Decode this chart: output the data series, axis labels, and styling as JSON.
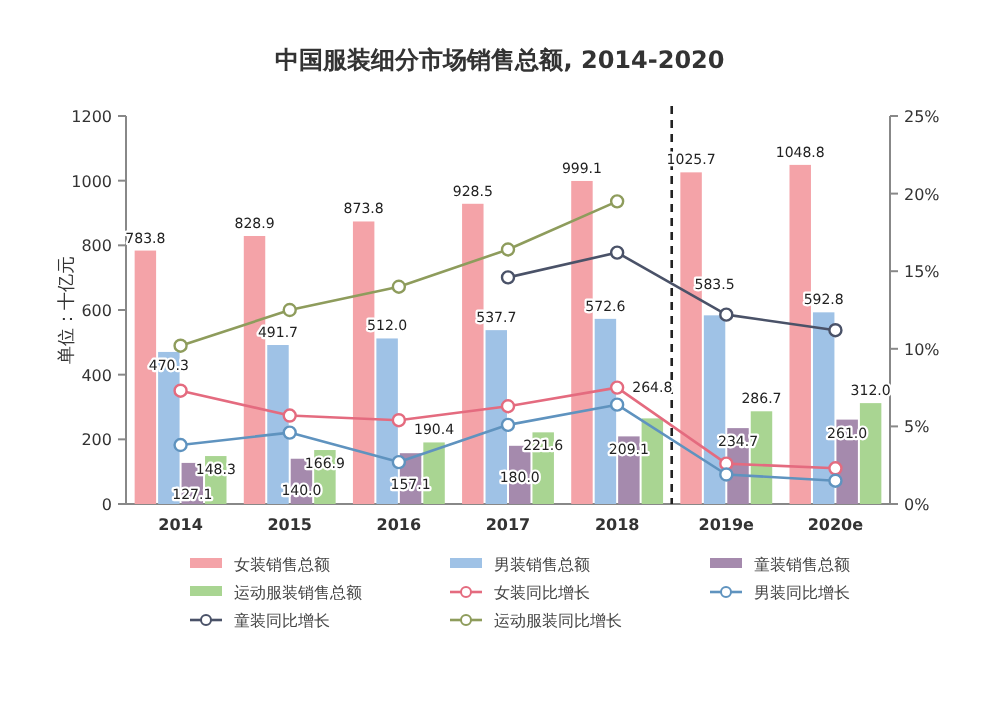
{
  "chart_data": {
    "type": "bar",
    "title": "中国服装细分市场销售总额, 2014-2020",
    "ylabel": "单位：十亿元",
    "categories": [
      "2014",
      "2015",
      "2016",
      "2017",
      "2018",
      "2019e",
      "2020e"
    ],
    "series": [
      {
        "name": "女装销售总额",
        "color": "#f4a3a8",
        "values": [
          783.8,
          828.9,
          873.8,
          928.5,
          999.1,
          1025.7,
          1048.8
        ],
        "value_labels": [
          "783.8",
          "828.9",
          "873.8",
          "928.5",
          "999.1",
          "1025.7",
          "1048.8"
        ]
      },
      {
        "name": "男装销售总额",
        "color": "#9fc2e6",
        "values": [
          470.3,
          491.7,
          512.0,
          537.7,
          572.6,
          583.5,
          592.8
        ],
        "value_labels": [
          "470.3",
          "491.7",
          "512.0",
          "537.7",
          "572.6",
          "583.5",
          "592.8"
        ]
      },
      {
        "name": "童装销售总额",
        "color": "#a58aad",
        "values": [
          127.1,
          140.0,
          157.1,
          180.0,
          209.1,
          234.7,
          261.0
        ],
        "value_labels": [
          "127.1",
          "140.0",
          "157.1",
          "180.0",
          "209.1",
          "234.7",
          "261.0"
        ]
      },
      {
        "name": "运动服装销售总额",
        "color": "#a9d592",
        "values": [
          148.3,
          166.9,
          190.4,
          221.6,
          264.8,
          286.7,
          312.0
        ],
        "value_labels": [
          "148.3",
          "166.9",
          "190.4",
          "221.6",
          "264.8",
          "286.7",
          "312.0"
        ]
      },
      {
        "name": "女装同比增长",
        "type": "line",
        "axis": "y2",
        "color": "#e46b7f",
        "values": [
          7.3,
          5.7,
          5.4,
          6.3,
          7.5,
          2.6,
          2.3
        ]
      },
      {
        "name": "男装同比增长",
        "type": "line",
        "axis": "y2",
        "color": "#5f93bf",
        "values": [
          3.8,
          4.6,
          2.7,
          5.1,
          6.4,
          1.9,
          1.5
        ]
      },
      {
        "name": "童装同比增长",
        "type": "line",
        "axis": "y2",
        "color": "#4a5268",
        "values": [
          null,
          null,
          null,
          14.6,
          16.2,
          12.2,
          11.2
        ]
      },
      {
        "name": "运动服装同比增长",
        "type": "line",
        "axis": "y2",
        "color": "#8e9c5c",
        "values": [
          10.2,
          12.5,
          14.0,
          16.4,
          19.5,
          null,
          null
        ]
      }
    ],
    "ylim": [
      0,
      1200
    ],
    "yticks": [
      0,
      200,
      400,
      600,
      800,
      1000,
      1200
    ],
    "y2lim": [
      0,
      25
    ],
    "y2ticks": [
      {
        "value": 0,
        "label": "0%"
      },
      {
        "value": 5,
        "label": "5%"
      },
      {
        "value": 10,
        "label": "10%"
      },
      {
        "value": 15,
        "label": "15%"
      },
      {
        "value": 20,
        "label": "20%"
      },
      {
        "value": 25,
        "label": "25%"
      }
    ],
    "marker": "circle",
    "legend": "bottom",
    "grid": false
  }
}
